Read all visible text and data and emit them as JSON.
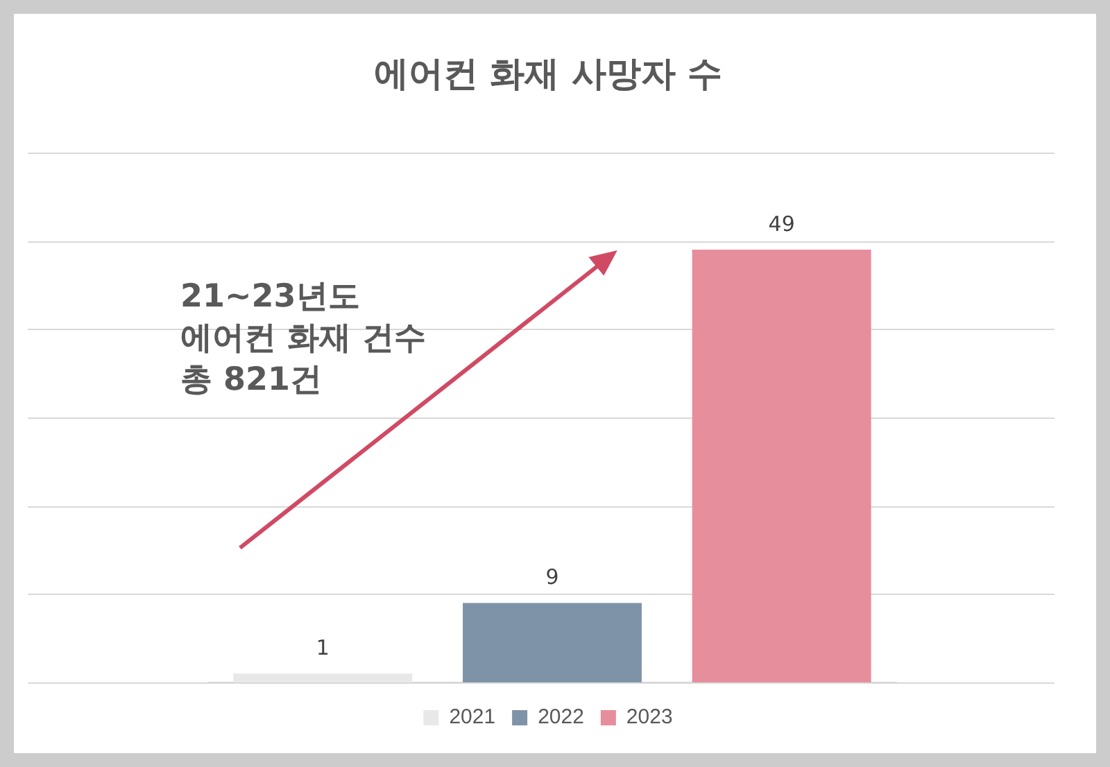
{
  "chart_data": {
    "type": "bar",
    "title": "에어컨 화재 사망자 수",
    "categories": [
      null
    ],
    "series": [
      {
        "name": "2021",
        "color": "#e8e8e8",
        "values": [
          1
        ]
      },
      {
        "name": "2022",
        "color": "#7f93a8",
        "values": [
          9
        ]
      },
      {
        "name": "2023",
        "color": "#e68e9c",
        "values": [
          49
        ]
      }
    ],
    "grid": "y",
    "legend": "bottom",
    "data_labels": true,
    "annotations": [
      "21~23년도\n에어컨 화재 건수\n총 821건"
    ]
  }
}
